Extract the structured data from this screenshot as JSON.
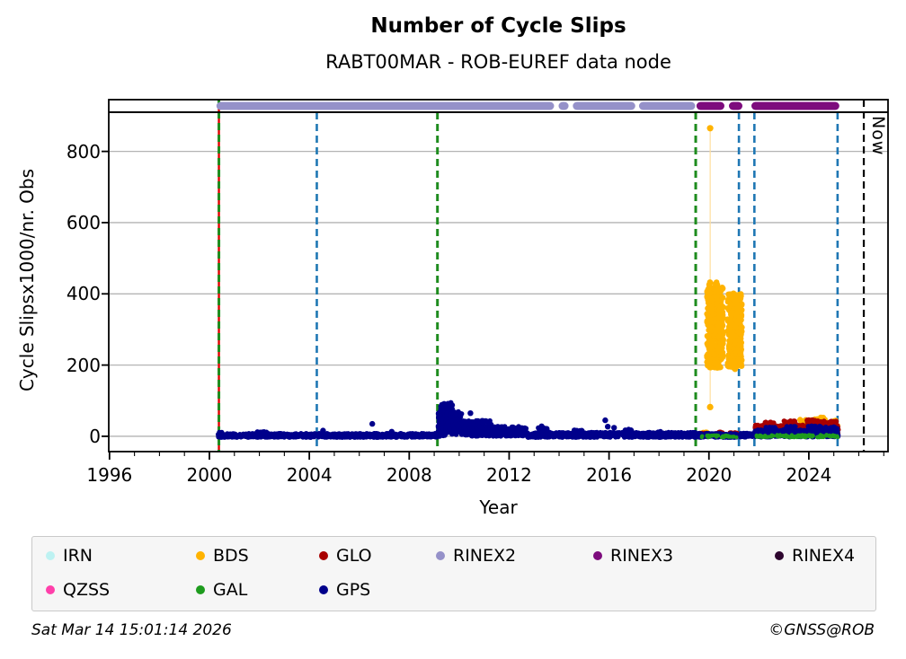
{
  "header": {
    "title": "Number of Cycle Slips",
    "subtitle": "RABT00MAR - ROB-EUREF data node"
  },
  "footer": {
    "timestamp": "Sat Mar 14 15:01:14 2026",
    "credit": "©GNSS@ROB"
  },
  "legend": {
    "rows": [
      [
        {
          "label": "IRN",
          "color": "#bdf2f2"
        },
        {
          "label": "BDS",
          "color": "#ffb300"
        },
        {
          "label": "GLO",
          "color": "#a80000"
        },
        {
          "label": "RINEX2",
          "color": "#9591c9"
        },
        {
          "label": "RINEX3",
          "color": "#7d0c7d"
        },
        {
          "label": "RINEX4",
          "color": "#2d052e"
        }
      ],
      [
        {
          "label": "QZSS",
          "color": "#ff40aa"
        },
        {
          "label": "GAL",
          "color": "#1e9c1e"
        },
        {
          "label": "GPS",
          "color": "#00008b"
        }
      ]
    ],
    "column_offsets": [
      15,
      182,
      319,
      449,
      624,
      826
    ],
    "row_tops": [
      9,
      47
    ]
  },
  "chart_data": {
    "type": "scatter",
    "title": "Number of Cycle Slips",
    "subtitle": "RABT00MAR - ROB-EUREF data node",
    "xlabel": "Year",
    "ylabel": "Cycle Slipsx1000/nr. Obs",
    "now_label": "Now",
    "xlim": [
      1995.97,
      2027.17
    ],
    "ylim": [
      -43,
      910
    ],
    "xticks": [
      1996,
      2000,
      2004,
      2008,
      2012,
      2016,
      2020,
      2024
    ],
    "minor_xtick_step": 1,
    "yticks": [
      0,
      200,
      400,
      600,
      800
    ],
    "grid": true,
    "grid_color": "#b4b4b4",
    "series": [
      {
        "name": "BDS",
        "color": "#ffb300",
        "radius": 3.2,
        "seed": 11,
        "segments": [
          [
            2019.92,
            2020.58,
            192,
            420,
            400
          ],
          [
            2020.0,
            2020.4,
            408,
            433,
            15
          ],
          [
            2020.75,
            2021.32,
            195,
            402,
            300
          ],
          [
            2020.78,
            2021.05,
            186,
            230,
            30
          ],
          [
            2019.62,
            2019.95,
            0,
            12,
            22
          ],
          [
            2023.6,
            2025.15,
            8,
            48,
            70
          ],
          [
            2024.2,
            2024.6,
            30,
            55,
            25
          ]
        ],
        "points": [
          [
            2020.05,
            865
          ],
          [
            2020.05,
            82
          ]
        ]
      },
      {
        "name": "GLO",
        "color": "#a80000",
        "radius": 2.8,
        "seed": 7,
        "segments": [
          [
            2019.6,
            2020.05,
            0,
            9,
            25
          ],
          [
            2020.2,
            2020.55,
            0,
            12,
            22
          ],
          [
            2020.8,
            2021.15,
            0,
            10,
            20
          ],
          [
            2021.3,
            2021.75,
            0,
            8,
            15
          ],
          [
            2021.85,
            2025.18,
            3,
            32,
            330
          ],
          [
            2022.2,
            2022.65,
            15,
            40,
            45
          ],
          [
            2023.0,
            2023.45,
            18,
            45,
            50
          ],
          [
            2023.9,
            2024.5,
            18,
            47,
            55
          ],
          [
            2024.6,
            2025.15,
            15,
            44,
            55
          ]
        ],
        "points": []
      },
      {
        "name": "GPS",
        "color": "#00008b",
        "radius": 2.8,
        "seed": 3,
        "segments": [
          [
            2000.35,
            2009.15,
            -3,
            8,
            850
          ],
          [
            2000.35,
            2000.55,
            -3,
            12,
            30
          ],
          [
            2001.9,
            2002.35,
            0,
            13,
            35
          ],
          [
            2009.15,
            2009.45,
            0,
            70,
            120
          ],
          [
            2009.25,
            2009.75,
            10,
            95,
            150
          ],
          [
            2009.45,
            2010.1,
            5,
            70,
            150
          ],
          [
            2010.1,
            2011.3,
            0,
            45,
            200
          ],
          [
            2011.3,
            2012.7,
            0,
            28,
            170
          ],
          [
            2012.7,
            2019.45,
            -3,
            11,
            650
          ],
          [
            2013.15,
            2013.55,
            0,
            24,
            30
          ],
          [
            2014.55,
            2014.95,
            0,
            18,
            25
          ],
          [
            2016.55,
            2016.95,
            0,
            20,
            25
          ],
          [
            2017.8,
            2018.1,
            0,
            14,
            15
          ],
          [
            2019.5,
            2021.15,
            -3,
            8,
            170
          ],
          [
            2021.25,
            2021.78,
            -3,
            9,
            55
          ],
          [
            2021.85,
            2025.18,
            -2,
            18,
            400
          ],
          [
            2022.25,
            2022.7,
            4,
            26,
            45
          ],
          [
            2023.05,
            2023.5,
            4,
            28,
            45
          ],
          [
            2023.95,
            2024.5,
            5,
            30,
            50
          ],
          [
            2024.65,
            2025.15,
            5,
            28,
            50
          ]
        ],
        "points": [
          [
            2006.52,
            35
          ],
          [
            2010.45,
            65
          ],
          [
            2015.85,
            45
          ],
          [
            2015.95,
            27
          ],
          [
            2011.05,
            42
          ],
          [
            2013.3,
            28
          ],
          [
            2016.2,
            24
          ],
          [
            2004.55,
            16
          ],
          [
            2007.3,
            13
          ]
        ]
      },
      {
        "name": "GAL",
        "color": "#1e9c1e",
        "radius": 2.2,
        "seed": 5,
        "segments": [
          [
            2019.6,
            2021.1,
            -3,
            3,
            35
          ],
          [
            2021.9,
            2025.18,
            -3,
            4,
            110
          ]
        ],
        "points": []
      }
    ],
    "strip_bands": [
      {
        "name": "RINEX2",
        "color": "#9591c9",
        "segments": [
          [
            2000.28,
            2013.8
          ],
          [
            2013.98,
            2014.38
          ],
          [
            2014.55,
            2017.05
          ],
          [
            2017.2,
            2019.45
          ]
        ]
      },
      {
        "name": "RINEX3",
        "color": "#7d0c7d",
        "segments": [
          [
            2019.5,
            2020.62
          ],
          [
            2020.8,
            2021.34
          ],
          [
            2021.7,
            2025.22
          ]
        ]
      }
    ],
    "vlines": [
      {
        "x": 2000.38,
        "color": "#e00000",
        "style": "solid",
        "full": true,
        "width": 2.4
      },
      {
        "x": 2000.38,
        "color": "#1e8c1e",
        "style": "dashed",
        "full": true,
        "width": 3.0
      },
      {
        "x": 2009.13,
        "color": "#1e8c1e",
        "style": "dashed",
        "full": false,
        "width": 3.0
      },
      {
        "x": 2019.47,
        "color": "#1e8c1e",
        "style": "dashed",
        "full": false,
        "width": 3.0
      },
      {
        "x": 2004.3,
        "color": "#1f77b4",
        "style": "dashed",
        "full": false,
        "width": 2.6
      },
      {
        "x": 2021.2,
        "color": "#1f77b4",
        "style": "dashed",
        "full": false,
        "width": 2.6
      },
      {
        "x": 2021.82,
        "color": "#1f77b4",
        "style": "dashed",
        "full": false,
        "width": 2.6
      },
      {
        "x": 2025.15,
        "color": "#1f77b4",
        "style": "dashed",
        "full": false,
        "width": 2.6
      },
      {
        "x": 2026.2,
        "color": "#000000",
        "style": "dashed",
        "full": true,
        "width": 2.2,
        "label": "Now"
      }
    ],
    "stem": {
      "x": 2020.05,
      "y0": 85,
      "y1": 860,
      "color": "#ffdf9e"
    }
  }
}
